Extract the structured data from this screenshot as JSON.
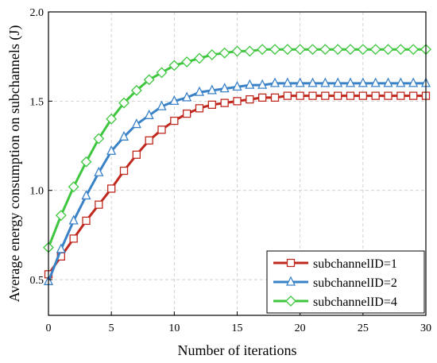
{
  "chart_data": {
    "type": "line",
    "title": "",
    "xlabel": "Number of iterations",
    "ylabel": "Average energy consumption on subchannels (J)",
    "xlim": [
      0,
      30
    ],
    "ylim": [
      0.3,
      2.0
    ],
    "xticks": [
      0,
      5,
      10,
      15,
      20,
      25,
      30
    ],
    "yticks": [
      0.5,
      1.0,
      1.5,
      2.0
    ],
    "xtick_labels": [
      "0",
      "5",
      "10",
      "15",
      "20",
      "25",
      "30"
    ],
    "ytick_labels": [
      "0.5",
      "1.0",
      "1.5",
      "2.0"
    ],
    "grid": true,
    "legend_position": "bottom-right",
    "x": [
      0,
      1,
      2,
      3,
      4,
      5,
      6,
      7,
      8,
      9,
      10,
      11,
      12,
      13,
      14,
      15,
      16,
      17,
      18,
      19,
      20,
      21,
      22,
      23,
      24,
      25,
      26,
      27,
      28,
      29,
      30
    ],
    "series": [
      {
        "name": "subchannelID=1",
        "color": "#c0281e",
        "marker": "square",
        "values": [
          0.53,
          0.63,
          0.73,
          0.83,
          0.92,
          1.01,
          1.11,
          1.2,
          1.28,
          1.34,
          1.39,
          1.43,
          1.46,
          1.48,
          1.49,
          1.5,
          1.51,
          1.52,
          1.52,
          1.53,
          1.53,
          1.53,
          1.53,
          1.53,
          1.53,
          1.53,
          1.53,
          1.53,
          1.53,
          1.53,
          1.53
        ]
      },
      {
        "name": "subchannelID=2",
        "color": "#3a82c7",
        "marker": "triangle",
        "values": [
          0.49,
          0.67,
          0.83,
          0.97,
          1.1,
          1.22,
          1.3,
          1.37,
          1.42,
          1.47,
          1.5,
          1.52,
          1.55,
          1.56,
          1.57,
          1.58,
          1.59,
          1.59,
          1.6,
          1.6,
          1.6,
          1.6,
          1.6,
          1.6,
          1.6,
          1.6,
          1.6,
          1.6,
          1.6,
          1.6,
          1.6
        ]
      },
      {
        "name": "subchannelID=4",
        "color": "#3ec63e",
        "marker": "diamond",
        "values": [
          0.68,
          0.86,
          1.02,
          1.16,
          1.29,
          1.4,
          1.49,
          1.56,
          1.62,
          1.66,
          1.7,
          1.72,
          1.74,
          1.76,
          1.77,
          1.78,
          1.78,
          1.79,
          1.79,
          1.79,
          1.79,
          1.79,
          1.79,
          1.79,
          1.79,
          1.79,
          1.79,
          1.79,
          1.79,
          1.79,
          1.79
        ]
      }
    ]
  }
}
